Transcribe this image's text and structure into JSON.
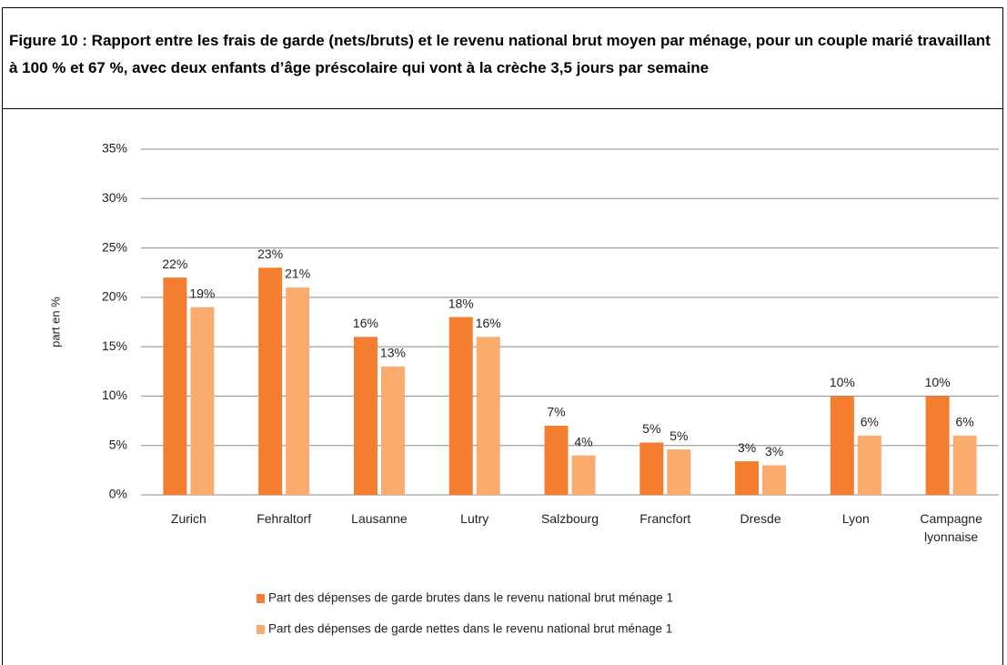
{
  "chart_data": {
    "type": "bar",
    "title": "Figure 10 : Rapport entre les frais de garde (nets/bruts) et le revenu national brut moyen par ménage, pour un couple marié travaillant à 100 % et 67 %, avec deux enfants d’âge préscolaire qui vont à la crèche 3,5 jours par semaine",
    "y_label": "part en %",
    "categories": [
      "Zurich",
      "Fehraltorf",
      "Lausanne",
      "Lutry",
      "Salzbourg",
      "Francfort",
      "Dresde",
      "Lyon",
      "Campagne lyonnaise"
    ],
    "series": [
      {
        "name": "Part des dépenses de garde brutes dans le revenu national brut ménage 1",
        "color": "#f47d30",
        "values": [
          22,
          23,
          16,
          18,
          7,
          5.3,
          3.4,
          10,
          10
        ],
        "value_labels": [
          "22%",
          "23%",
          "16%",
          "18%",
          "7%",
          "5%",
          "3%",
          "10%",
          "10%"
        ]
      },
      {
        "name": "Part des dépenses de garde nettes dans le revenu national brut ménage 1",
        "color": "#fbab6e",
        "values": [
          19,
          21,
          13,
          16,
          4,
          4.6,
          3,
          6,
          6
        ],
        "value_labels": [
          "19%",
          "21%",
          "13%",
          "16%",
          "4%",
          "5%",
          "3%",
          "6%",
          "6%"
        ]
      }
    ],
    "ylim": [
      0,
      35
    ],
    "yticks": [
      {
        "value": 0,
        "label": "0%"
      },
      {
        "value": 5,
        "label": "5%"
      },
      {
        "value": 10,
        "label": "10%"
      },
      {
        "value": 15,
        "label": "15%"
      },
      {
        "value": 20,
        "label": "20%"
      },
      {
        "value": 25,
        "label": "25%"
      },
      {
        "value": 30,
        "label": "30%"
      },
      {
        "value": 35,
        "label": "35%"
      }
    ],
    "grid": true,
    "legend": "bottom"
  }
}
